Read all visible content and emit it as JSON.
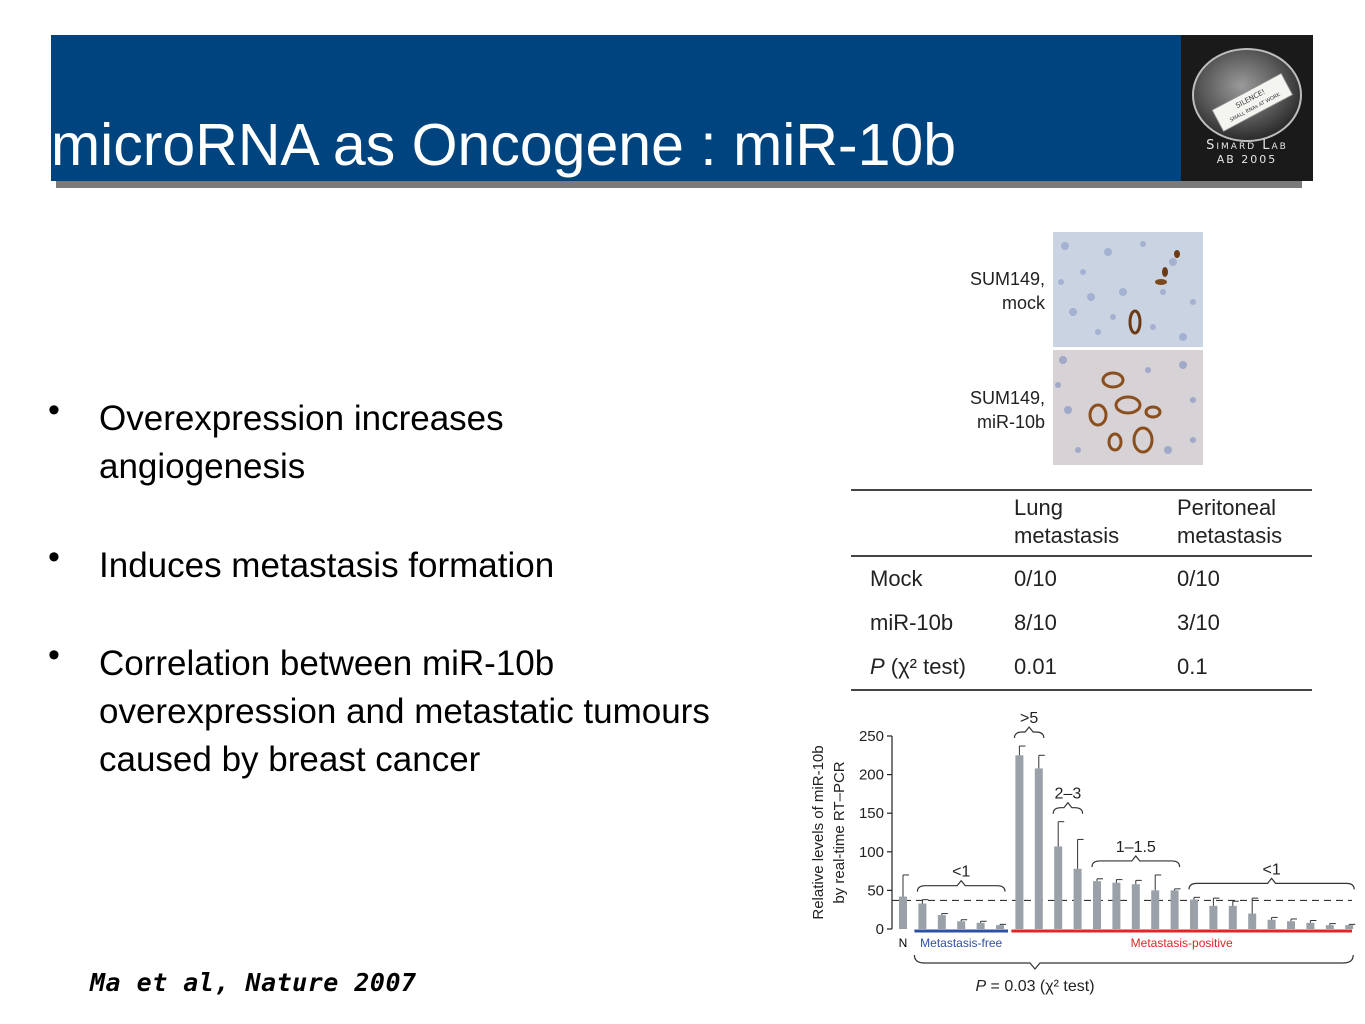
{
  "slide": {
    "title": "microRNA as Oncogene : miR-10b",
    "logo": {
      "line1": "Simard Lab",
      "line2": "AB 2005",
      "note": "SILENCE! SMALL RNAs AT WORK"
    },
    "bullets": [
      {
        "text": "Overexpression increases angiogenesis"
      },
      {
        "text": "Induces metastasis formation"
      },
      {
        "text": "Correlation between miR-10b overexpression and metastatic tumours caused by breast cancer"
      }
    ],
    "citation": "Ma et al, Nature 2007"
  },
  "micrographs": [
    {
      "line1": "SUM149,",
      "line2": "mock"
    },
    {
      "line1": "SUM149,",
      "line2": "miR-10b"
    }
  ],
  "table": {
    "headers": {
      "h1a": "Lung",
      "h1b": "metastasis",
      "h2a": "Peritoneal",
      "h2b": "metastasis"
    },
    "rows": [
      {
        "label": "Mock",
        "lung": "0/10",
        "peri": "0/10"
      },
      {
        "label": "miR-10b",
        "lung": "8/10",
        "peri": "3/10"
      },
      {
        "label_p": "P",
        "label_rest": " (χ² test)",
        "lung": "0.01",
        "peri": "0.1"
      }
    ]
  },
  "chart_data": {
    "type": "bar",
    "ylabel": "Relative levels of miR-10b by real-time RT–PCR",
    "ylim": [
      0,
      250
    ],
    "yticks": [
      0,
      50,
      100,
      150,
      200,
      250
    ],
    "threshold": 37,
    "values": [
      42,
      33,
      18,
      10,
      8,
      5,
      225,
      208,
      107,
      78,
      62,
      60,
      58,
      50,
      50,
      38,
      30,
      30,
      20,
      12,
      10,
      8,
      5,
      5
    ],
    "errors": [
      28,
      5,
      2,
      2,
      2,
      1,
      12,
      17,
      32,
      38,
      3,
      4,
      5,
      20,
      2,
      3,
      10,
      6,
      20,
      3,
      3,
      3,
      2,
      1
    ],
    "groups": [
      {
        "label": "N",
        "color": "#000000",
        "from": 0,
        "to": 0
      },
      {
        "label": "Metastasis-free",
        "color": "#2e4fa6",
        "from": 1,
        "to": 5
      },
      {
        "label": "Metastasis-positive",
        "color": "#e02626",
        "from": 6,
        "to": 23
      }
    ],
    "brackets": [
      {
        "label": "<1",
        "from": 1,
        "to": 5
      },
      {
        "label": ">5",
        "from": 6,
        "to": 7
      },
      {
        "label": "2–3",
        "from": 8,
        "to": 9
      },
      {
        "label": "1–1.5",
        "from": 10,
        "to": 14
      },
      {
        "label": "<1",
        "from": 15,
        "to": 23
      }
    ],
    "pvalue": {
      "p": "P",
      "rest": " = 0.03 (χ² test)"
    }
  }
}
